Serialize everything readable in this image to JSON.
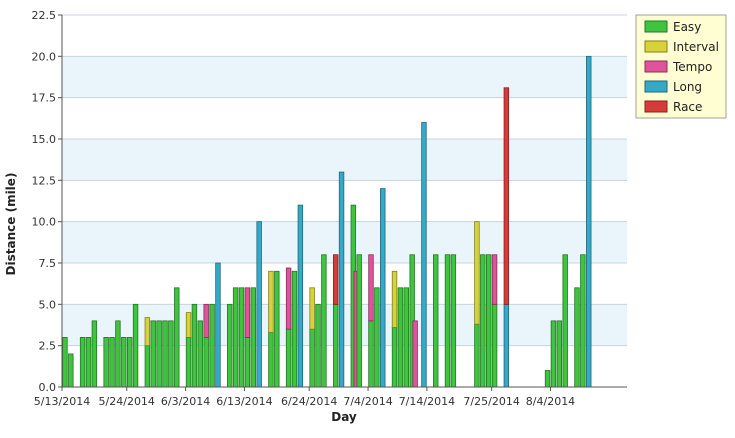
{
  "chart_data": {
    "type": "bar",
    "stacked": true,
    "xlabel": "Day",
    "ylabel": "Distance (mile)",
    "ylim": [
      0,
      22.5
    ],
    "yticks": [
      "0.0",
      "2.5",
      "5.0",
      "7.5",
      "10.0",
      "12.5",
      "15.0",
      "17.5",
      "20.0",
      "22.5"
    ],
    "x_tick_labels": [
      "5/13/2014",
      "5/24/2014",
      "6/3/2014",
      "6/13/2014",
      "6/24/2014",
      "7/4/2014",
      "7/14/2014",
      "7/25/2014",
      "8/4/2014"
    ],
    "x_tick_days": [
      0,
      11,
      21,
      31,
      42,
      52,
      62,
      73,
      83
    ],
    "x_range_days": [
      0,
      96
    ],
    "grid": true,
    "legend_position": "top-right",
    "series": [
      {
        "name": "Easy",
        "color": "#3ec43e"
      },
      {
        "name": "Interval",
        "color": "#d8d23a"
      },
      {
        "name": "Tempo",
        "color": "#e0529a"
      },
      {
        "name": "Long",
        "color": "#35aac8"
      },
      {
        "name": "Race",
        "color": "#d83a3a"
      }
    ],
    "days": [
      {
        "date": "5/13/2014",
        "Easy": 3
      },
      {
        "date": "5/14/2014",
        "Easy": 2
      },
      {
        "date": "5/16/2014",
        "Easy": 3
      },
      {
        "date": "5/17/2014",
        "Easy": 3
      },
      {
        "date": "5/18/2014",
        "Easy": 4
      },
      {
        "date": "5/20/2014",
        "Easy": 3
      },
      {
        "date": "5/21/2014",
        "Easy": 3
      },
      {
        "date": "5/22/2014",
        "Easy": 4
      },
      {
        "date": "5/23/2014",
        "Easy": 3
      },
      {
        "date": "5/24/2014",
        "Easy": 3
      },
      {
        "date": "5/25/2014",
        "Easy": 5
      },
      {
        "date": "5/27/2014",
        "Easy": 2.5,
        "Interval": 1.7
      },
      {
        "date": "5/28/2014",
        "Easy": 4
      },
      {
        "date": "5/29/2014",
        "Easy": 4
      },
      {
        "date": "5/30/2014",
        "Easy": 4
      },
      {
        "date": "5/31/2014",
        "Easy": 4
      },
      {
        "date": "6/1/2014",
        "Easy": 6
      },
      {
        "date": "6/3/2014",
        "Easy": 3,
        "Interval": 1.5
      },
      {
        "date": "6/4/2014",
        "Easy": 5
      },
      {
        "date": "6/5/2014",
        "Easy": 4
      },
      {
        "date": "6/6/2014",
        "Easy": 3,
        "Tempo": 2
      },
      {
        "date": "6/7/2014",
        "Easy": 5
      },
      {
        "date": "6/8/2014",
        "Long": 7.5
      },
      {
        "date": "6/10/2014",
        "Easy": 5
      },
      {
        "date": "6/11/2014",
        "Easy": 6
      },
      {
        "date": "6/12/2014",
        "Easy": 6
      },
      {
        "date": "6/13/2014",
        "Easy": 3,
        "Tempo": 3
      },
      {
        "date": "6/14/2014",
        "Easy": 6
      },
      {
        "date": "6/15/2014",
        "Long": 10
      },
      {
        "date": "6/17/2014",
        "Easy": 3.3,
        "Interval": 3.7
      },
      {
        "date": "6/18/2014",
        "Easy": 7
      },
      {
        "date": "6/20/2014",
        "Easy": 3.5,
        "Tempo": 3.7
      },
      {
        "date": "6/21/2014",
        "Easy": 7
      },
      {
        "date": "6/22/2014",
        "Long": 11
      },
      {
        "date": "6/24/2014",
        "Easy": 3.5,
        "Interval": 2.5
      },
      {
        "date": "6/25/2014",
        "Easy": 5
      },
      {
        "date": "6/26/2014",
        "Easy": 8
      },
      {
        "date": "6/28/2014",
        "Easy": 5,
        "Race": 3
      },
      {
        "date": "6/29/2014",
        "Long": 13
      },
      {
        "date": "7/1/2014",
        "Easy": 11
      },
      {
        "date": "7/1/2014b",
        "Tempo": 7
      },
      {
        "date": "7/2/2014",
        "Easy": 8
      },
      {
        "date": "7/4/2014",
        "Easy": 4,
        "Tempo": 4
      },
      {
        "date": "7/5/2014",
        "Easy": 6
      },
      {
        "date": "7/6/2014",
        "Long": 12
      },
      {
        "date": "7/8/2014",
        "Easy": 3.6,
        "Interval": 3.4
      },
      {
        "date": "7/9/2014",
        "Easy": 6
      },
      {
        "date": "7/10/2014",
        "Easy": 6
      },
      {
        "date": "7/11/2014",
        "Easy": 8
      },
      {
        "date": "7/11/2014b",
        "Tempo": 4
      },
      {
        "date": "7/13/2014",
        "Long": 16
      },
      {
        "date": "7/15/2014",
        "Easy": 8
      },
      {
        "date": "7/17/2014",
        "Easy": 8
      },
      {
        "date": "7/18/2014",
        "Easy": 8
      },
      {
        "date": "7/22/2014",
        "Easy": 3.8,
        "Interval": 6.2
      },
      {
        "date": "7/23/2014",
        "Easy": 8
      },
      {
        "date": "7/24/2014",
        "Easy": 8
      },
      {
        "date": "7/25/2014",
        "Easy": 5,
        "Tempo": 3
      },
      {
        "date": "7/27/2014",
        "Long": 5,
        "Race": 13.1
      },
      {
        "date": "8/3/2014",
        "Easy": 1
      },
      {
        "date": "8/4/2014",
        "Easy": 4
      },
      {
        "date": "8/5/2014",
        "Easy": 4
      },
      {
        "date": "8/6/2014",
        "Easy": 8
      },
      {
        "date": "8/8/2014",
        "Easy": 6
      },
      {
        "date": "8/9/2014",
        "Easy": 8
      },
      {
        "date": "8/10/2014",
        "Long": 20
      }
    ]
  }
}
